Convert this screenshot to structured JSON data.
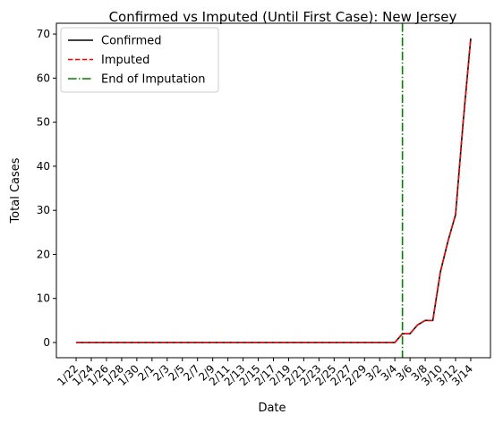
{
  "chart_data": {
    "type": "line",
    "title": "Confirmed vs Imputed (Until First Case): New Jersey",
    "xlabel": "Date",
    "ylabel": "Total Cases",
    "ylim": [
      -3.45,
      72.45
    ],
    "yticks": [
      0,
      10,
      20,
      30,
      40,
      50,
      60,
      70
    ],
    "x": [
      "1/22",
      "1/23",
      "1/24",
      "1/25",
      "1/26",
      "1/27",
      "1/28",
      "1/29",
      "1/30",
      "1/31",
      "2/1",
      "2/2",
      "2/3",
      "2/4",
      "2/5",
      "2/6",
      "2/7",
      "2/8",
      "2/9",
      "2/10",
      "2/11",
      "2/12",
      "2/13",
      "2/14",
      "2/15",
      "2/16",
      "2/17",
      "2/18",
      "2/19",
      "2/20",
      "2/21",
      "2/22",
      "2/23",
      "2/24",
      "2/25",
      "2/26",
      "2/27",
      "2/28",
      "2/29",
      "3/1",
      "3/2",
      "3/3",
      "3/4",
      "3/5",
      "3/6",
      "3/7",
      "3/8",
      "3/9",
      "3/10",
      "3/11",
      "3/12",
      "3/13",
      "3/14"
    ],
    "xticks": [
      "1/22",
      "1/24",
      "1/26",
      "1/28",
      "1/30",
      "2/1",
      "2/3",
      "2/5",
      "2/7",
      "2/9",
      "2/11",
      "2/13",
      "2/15",
      "2/17",
      "2/19",
      "2/21",
      "2/23",
      "2/25",
      "2/27",
      "2/29",
      "3/2",
      "3/4",
      "3/6",
      "3/8",
      "3/10",
      "3/12",
      "3/14"
    ],
    "series": [
      {
        "name": "Confirmed",
        "color": "#000000",
        "style": "solid",
        "values": [
          0,
          0,
          0,
          0,
          0,
          0,
          0,
          0,
          0,
          0,
          0,
          0,
          0,
          0,
          0,
          0,
          0,
          0,
          0,
          0,
          0,
          0,
          0,
          0,
          0,
          0,
          0,
          0,
          0,
          0,
          0,
          0,
          0,
          0,
          0,
          0,
          0,
          0,
          0,
          0,
          0,
          0,
          0,
          2,
          2,
          4,
          5,
          5,
          16,
          23,
          29,
          50,
          69
        ]
      },
      {
        "name": "Imputed",
        "color": "#ff0000",
        "style": "dashed",
        "values": [
          0,
          0,
          0,
          0,
          0,
          0,
          0,
          0,
          0,
          0,
          0,
          0,
          0,
          0,
          0,
          0,
          0,
          0,
          0,
          0,
          0,
          0,
          0,
          0,
          0,
          0,
          0,
          0,
          0,
          0,
          0,
          0,
          0,
          0,
          0,
          0,
          0,
          0,
          0,
          0,
          0,
          0,
          0,
          2,
          2,
          4,
          5,
          5,
          16,
          23,
          29,
          50,
          69
        ]
      }
    ],
    "vline": {
      "name": "End of Imputation",
      "x": "3/5",
      "color": "#008000",
      "style": "dashdot"
    },
    "legend": {
      "position": "top-left",
      "entries": [
        "Confirmed",
        "Imputed",
        "End of Imputation"
      ]
    },
    "grid": false
  }
}
